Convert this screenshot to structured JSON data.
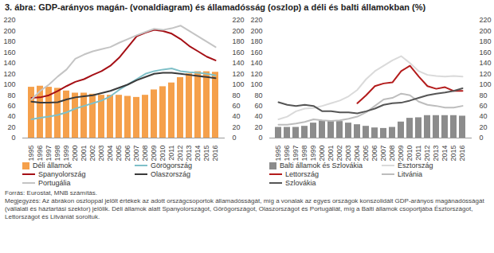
{
  "title": "3. ábra: GDP-arányos magán- (vonaldiagram) és államadósság (oszlop) a déli és balti államokban (%)",
  "chart_data": [
    {
      "type": "bar",
      "categories": [
        "1995",
        "1996",
        "1997",
        "1998",
        "1999",
        "2000",
        "2001",
        "2002",
        "2003",
        "2004",
        "2005",
        "2006",
        "2007",
        "2008",
        "2009",
        "2010",
        "2011",
        "2012",
        "2013",
        "2014",
        "2015",
        "2016"
      ],
      "series": [
        {
          "name": "Déli államok",
          "type": "bar",
          "color": "#f5a04b",
          "values": [
            95,
            97,
            95,
            93,
            88,
            84,
            84,
            82,
            80,
            80,
            80,
            78,
            76,
            80,
            90,
            96,
            103,
            113,
            120,
            124,
            124,
            123
          ]
        },
        {
          "name": "Görögország",
          "type": "line",
          "color": "#7fc0c8",
          "values": [
            35,
            38,
            40,
            43,
            48,
            55,
            60,
            65,
            70,
            78,
            90,
            100,
            110,
            120,
            125,
            128,
            130,
            125,
            123,
            122,
            120,
            117
          ]
        },
        {
          "name": "Spanyolország",
          "type": "line",
          "color": "#a50f15",
          "values": [
            75,
            76,
            80,
            88,
            97,
            105,
            110,
            118,
            125,
            135,
            150,
            170,
            190,
            197,
            202,
            200,
            195,
            185,
            172,
            162,
            152,
            145
          ]
        },
        {
          "name": "Olaszország",
          "type": "line",
          "color": "#3a3a3a",
          "values": [
            68,
            66,
            66,
            67,
            72,
            76,
            78,
            80,
            84,
            88,
            94,
            100,
            108,
            114,
            120,
            122,
            122,
            120,
            118,
            116,
            114,
            112
          ]
        },
        {
          "name": "Portugália",
          "type": "line",
          "color": "#c4c4c4",
          "values": [
            72,
            88,
            100,
            115,
            128,
            148,
            156,
            162,
            166,
            170,
            178,
            185,
            192,
            198,
            204,
            202,
            205,
            210,
            200,
            190,
            180,
            170
          ]
        }
      ],
      "ylim": [
        0,
        220
      ],
      "yticks": [
        0,
        20,
        40,
        60,
        80,
        100,
        120,
        140,
        160,
        180,
        200,
        220
      ],
      "grid": false
    },
    {
      "type": "bar",
      "categories": [
        "1995",
        "1996",
        "1997",
        "1998",
        "1999",
        "2000",
        "2001",
        "2002",
        "2003",
        "2004",
        "2005",
        "2006",
        "2007",
        "2008",
        "2009",
        "2010",
        "2011",
        "2012",
        "2013",
        "2014",
        "2015",
        "2016"
      ],
      "series": [
        {
          "name": "Balti államok és Szlovákia",
          "type": "bar",
          "color": "#8c8c8c",
          "values": [
            20,
            20,
            20,
            22,
            28,
            32,
            32,
            31,
            28,
            25,
            22,
            19,
            18,
            20,
            30,
            37,
            38,
            42,
            42,
            42,
            42,
            41
          ]
        },
        {
          "name": "Észtország",
          "type": "line",
          "color": "#dadada",
          "values": [
            35,
            40,
            50,
            55,
            56,
            60,
            65,
            70,
            78,
            90,
            110,
            125,
            135,
            145,
            153,
            140,
            125,
            118,
            116,
            115,
            116,
            115
          ]
        },
        {
          "name": "Lettország",
          "type": "line",
          "color": "#b31b1b",
          "values": [
            null,
            null,
            null,
            null,
            null,
            null,
            null,
            null,
            null,
            65,
            80,
            97,
            102,
            104,
            125,
            135,
            115,
            97,
            92,
            95,
            88,
            88
          ]
        },
        {
          "name": "Litvánia",
          "type": "line",
          "color": "#bdbdbd",
          "values": [
            25,
            25,
            27,
            30,
            35,
            33,
            32,
            33,
            36,
            40,
            48,
            60,
            72,
            75,
            83,
            80,
            68,
            62,
            60,
            57,
            57,
            60
          ]
        },
        {
          "name": "Szlovákia",
          "type": "line",
          "color": "#555555",
          "values": [
            67,
            62,
            60,
            62,
            60,
            50,
            50,
            48,
            48,
            46,
            50,
            55,
            62,
            65,
            66,
            70,
            75,
            80,
            83,
            85,
            88,
            93
          ]
        }
      ],
      "ylim": [
        0,
        220
      ],
      "yticks": [
        0,
        20,
        40,
        60,
        80,
        100,
        120,
        140,
        160,
        180,
        200,
        220
      ],
      "grid": false
    }
  ],
  "source": "Forrás: Eurostat, MNB számítás.",
  "note": "Megjegyzés: Az ábrákon oszloppal jelölt értékek az adott országcsoportok államadósságát, míg a vonalak az egyes országok konszolidált GDP-arányos magánadósságát (vállalati és háztartási szektor) jelölik. Déli államok alatt Spanyolországot, Görögországot, Olaszországot és Portugáliát, míg a Balti államok csoportjába Észtországot, Lettországot és Litvániát soroltuk."
}
